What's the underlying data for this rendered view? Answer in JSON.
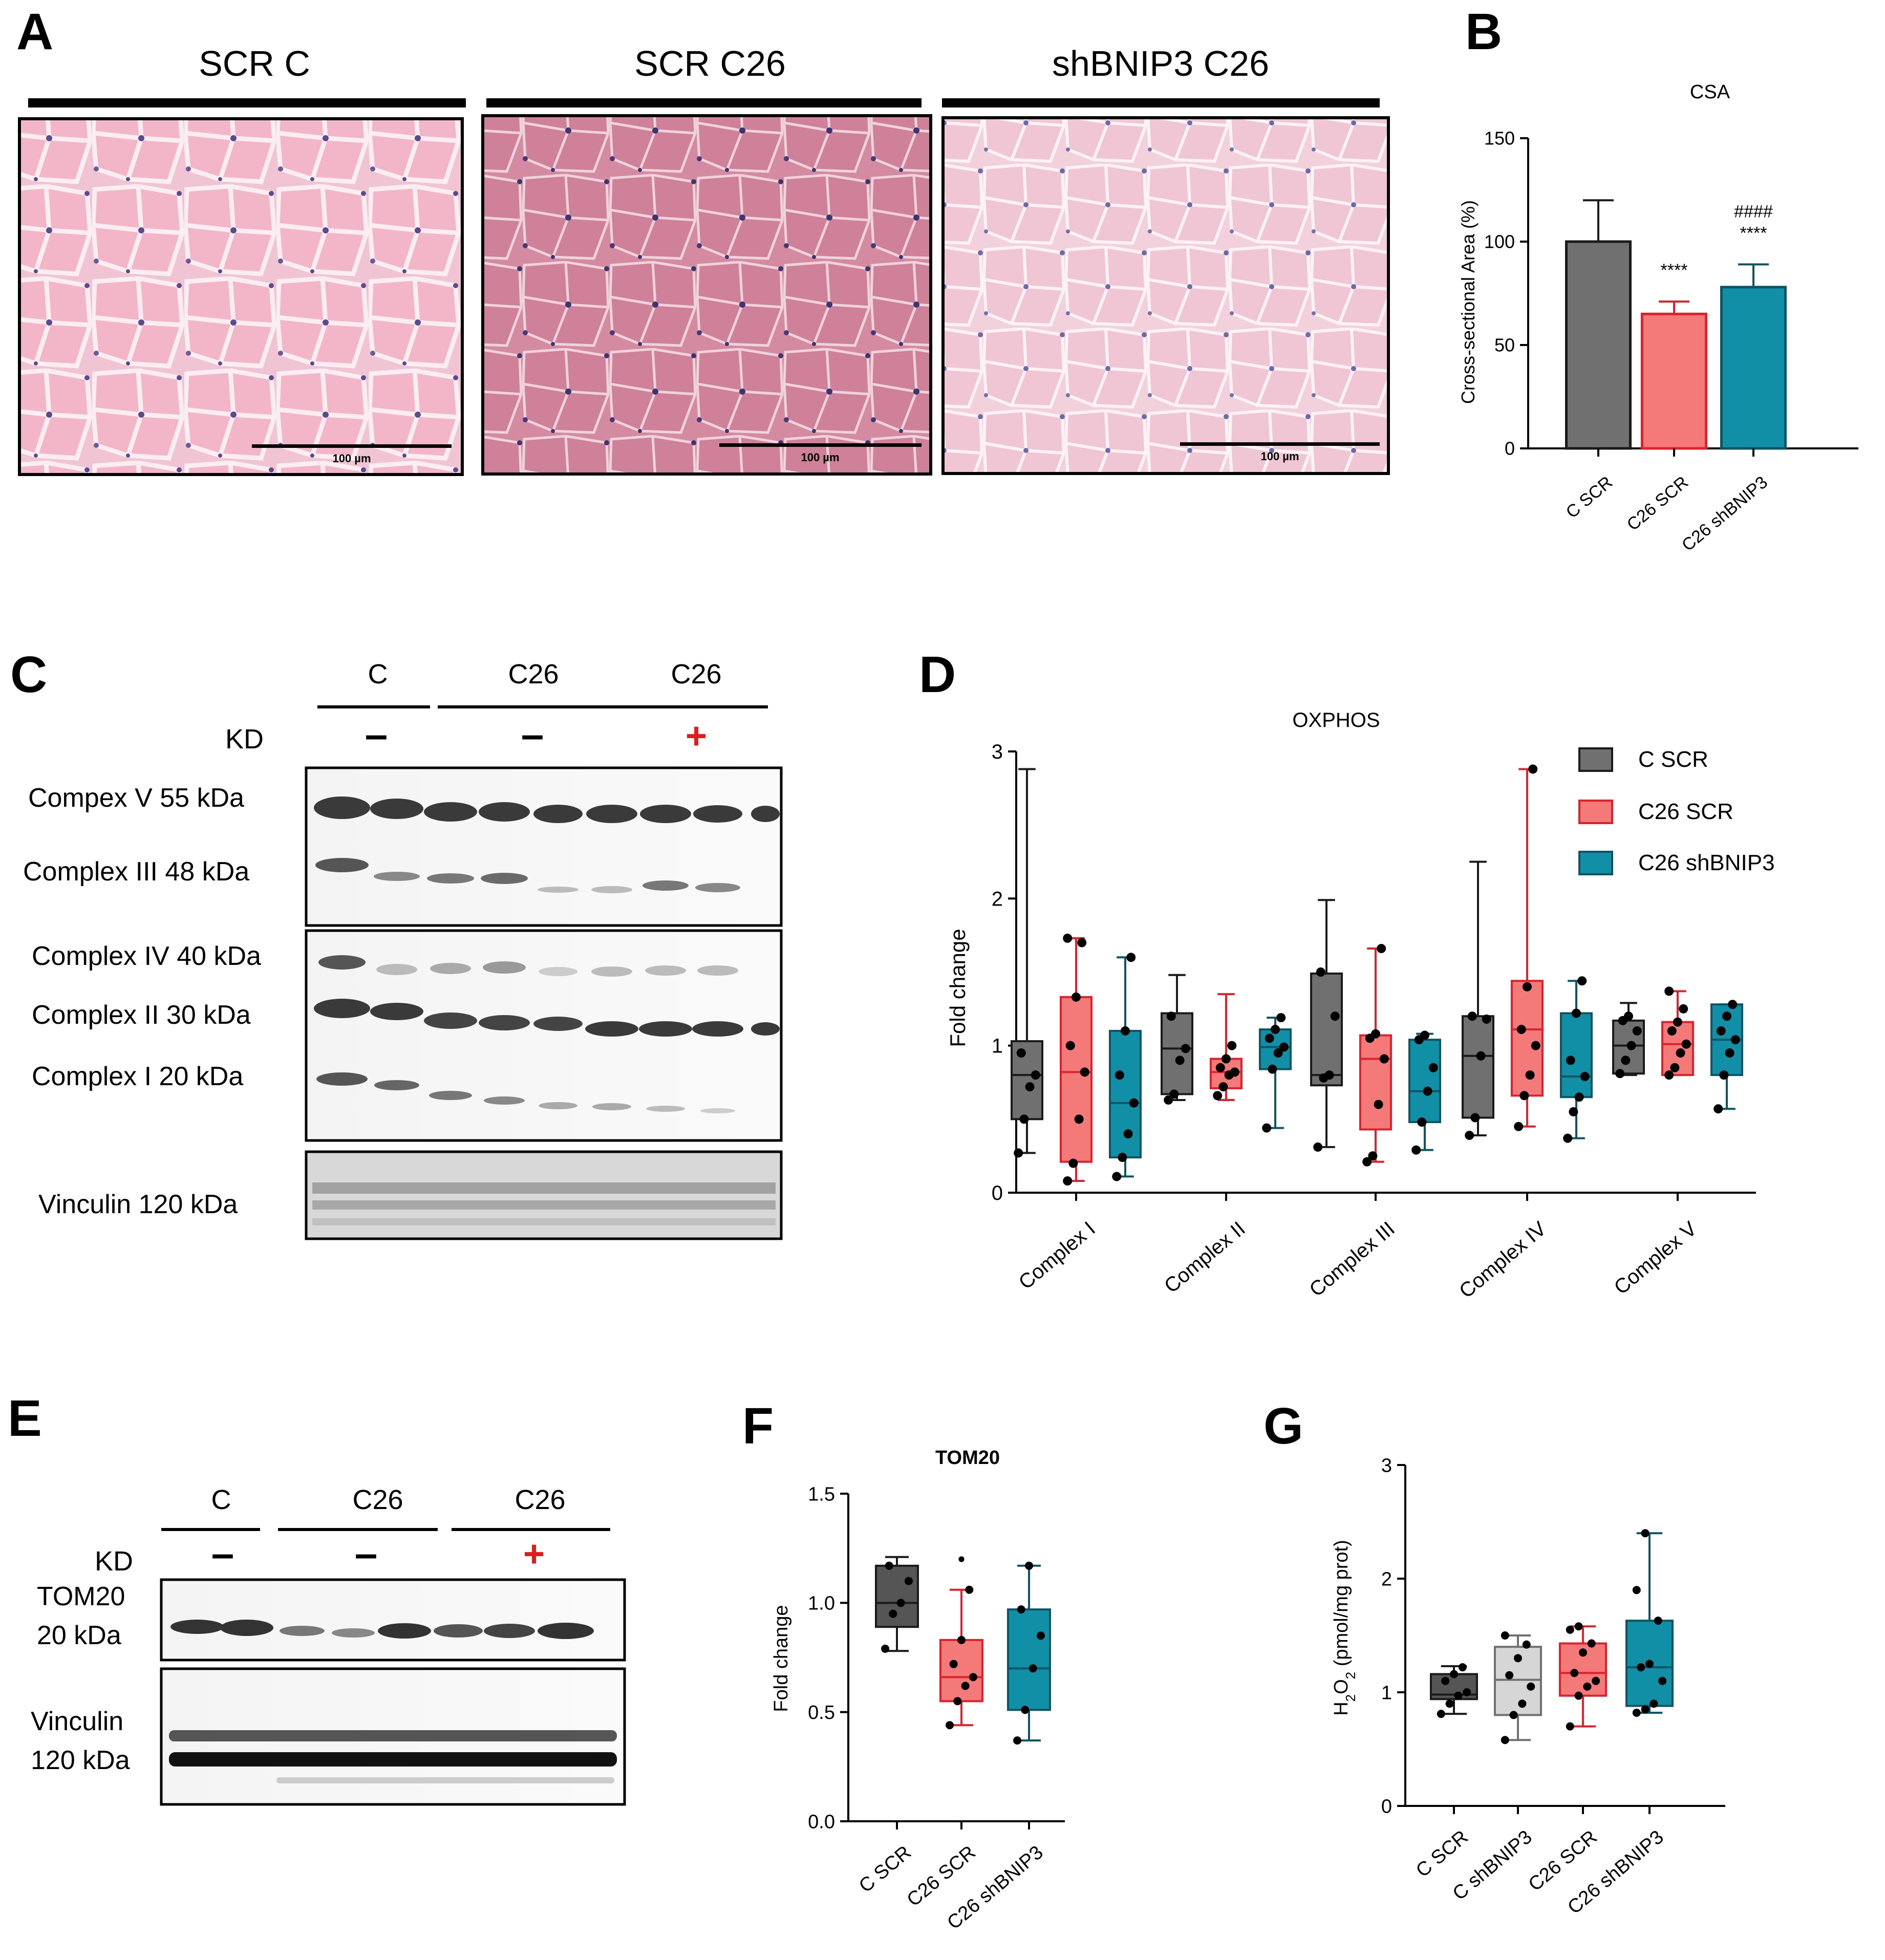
{
  "panels": {
    "A": {
      "letter": "A",
      "groups": [
        "SCR C",
        "SCR C26",
        "shBNIP3 C26"
      ],
      "scale_bar_label": "100 µm"
    },
    "B": {
      "letter": "B"
    },
    "C": {
      "letter": "C",
      "header_groups": [
        "C",
        "C26",
        "C26"
      ],
      "kd_label": "KD",
      "kd_marks": [
        "–",
        "–",
        "+"
      ],
      "band_labels": [
        "Compex  V 55 kDa",
        "Complex  III 48 kDa",
        "Complex  IV 40 kDa",
        "Complex  II 30 kDa",
        "Complex  I 20 kDa",
        "Vinculin 120 kDa"
      ]
    },
    "D": {
      "letter": "D"
    },
    "E": {
      "letter": "E",
      "header_groups": [
        "C",
        "C26",
        "C26"
      ],
      "kd_label": "KD",
      "kd_marks": [
        "–",
        "–",
        "+"
      ],
      "band_labels": [
        "TOM20",
        "20 kDa",
        "Vinculin",
        "120 kDa"
      ]
    },
    "F": {
      "letter": "F"
    },
    "G": {
      "letter": "G"
    }
  },
  "colors": {
    "c_scr": "#707070",
    "c_scr_dark": "#1a1a1a",
    "c26_scr": "#f47a7a",
    "c26_scr_dark": "#e0202a",
    "c26_shbnip3": "#108fa6",
    "c26_shbnip3_dark": "#0b5565",
    "c_shbnip3": "#d6d6d6",
    "c_shbnip3_dark": "#707070",
    "kd_plus": "#e21b1b"
  },
  "chart_data": [
    {
      "id": "B",
      "type": "bar",
      "title": "CSA",
      "ylabel": "Cross-sectional Area (%)",
      "ylim": [
        0,
        150
      ],
      "yticks": [
        0,
        50,
        100,
        150
      ],
      "categories": [
        "C SCR",
        "C26 SCR",
        "C26 shBNIP3"
      ],
      "values": [
        100,
        65,
        78
      ],
      "errors": [
        20,
        6,
        11
      ],
      "annotations": [
        {
          "category": "C26 SCR",
          "lines": [
            "****"
          ]
        },
        {
          "category": "C26 shBNIP3",
          "lines": [
            "####",
            "****"
          ]
        }
      ]
    },
    {
      "id": "D",
      "type": "box",
      "title": "OXPHOS",
      "ylabel": "Fold change",
      "ylim": [
        0,
        3
      ],
      "yticks": [
        0,
        1,
        2,
        3
      ],
      "categories": [
        "Complex I",
        "Complex II",
        "Complex III",
        "Complex IV",
        "Complex V"
      ],
      "legend": {
        "position": "top-right",
        "entries": [
          "C SCR",
          "C26 SCR",
          "C26 shBNIP3"
        ]
      },
      "series": [
        {
          "name": "C SCR",
          "boxes": [
            {
              "min": 0.27,
              "q1": 0.5,
              "median": 0.8,
              "q3": 1.03,
              "max": 2.88,
              "points": [
                0.27,
                0.5,
                0.72,
                0.8,
                0.95
              ]
            },
            {
              "min": 0.63,
              "q1": 0.67,
              "median": 0.98,
              "q3": 1.22,
              "max": 1.48,
              "points": [
                0.63,
                0.67,
                0.9,
                0.98,
                1.2
              ]
            },
            {
              "min": 0.31,
              "q1": 0.73,
              "median": 0.8,
              "q3": 1.49,
              "max": 1.99,
              "points": [
                0.31,
                0.78,
                0.8,
                1.2,
                1.5
              ]
            },
            {
              "min": 0.39,
              "q1": 0.51,
              "median": 0.93,
              "q3": 1.2,
              "max": 2.25,
              "points": [
                0.39,
                0.51,
                0.93,
                1.18,
                1.2
              ]
            },
            {
              "min": 0.8,
              "q1": 0.81,
              "median": 1.0,
              "q3": 1.17,
              "max": 1.29,
              "points": [
                0.81,
                0.9,
                1.0,
                1.1,
                1.17,
                1.2
              ]
            }
          ]
        },
        {
          "name": "C26 SCR",
          "boxes": [
            {
              "min": 0.08,
              "q1": 0.21,
              "median": 0.82,
              "q3": 1.33,
              "max": 1.73,
              "points": [
                0.08,
                0.2,
                0.5,
                0.82,
                1.0,
                1.33,
                1.7,
                1.73
              ]
            },
            {
              "min": 0.63,
              "q1": 0.71,
              "median": 0.82,
              "q3": 0.91,
              "max": 1.35,
              "points": [
                0.66,
                0.72,
                0.8,
                0.82,
                0.85,
                0.91,
                1.0
              ]
            },
            {
              "min": 0.21,
              "q1": 0.43,
              "median": 0.91,
              "q3": 1.07,
              "max": 1.66,
              "points": [
                0.21,
                0.25,
                0.6,
                0.91,
                1.05,
                1.08,
                1.66
              ]
            },
            {
              "min": 0.45,
              "q1": 0.66,
              "median": 1.11,
              "q3": 1.44,
              "max": 2.88,
              "points": [
                0.45,
                0.66,
                0.8,
                1.0,
                1.11,
                1.4,
                2.88
              ]
            },
            {
              "min": 0.8,
              "q1": 0.8,
              "median": 1.01,
              "q3": 1.16,
              "max": 1.37,
              "points": [
                0.8,
                0.85,
                0.95,
                1.01,
                1.1,
                1.16,
                1.25,
                1.37
              ]
            }
          ]
        },
        {
          "name": "C26 shBNIP3",
          "boxes": [
            {
              "min": 0.11,
              "q1": 0.24,
              "median": 0.61,
              "q3": 1.1,
              "max": 1.6,
              "points": [
                0.11,
                0.24,
                0.4,
                0.61,
                0.8,
                1.1,
                1.6
              ]
            },
            {
              "min": 0.44,
              "q1": 0.84,
              "median": 0.99,
              "q3": 1.11,
              "max": 1.19,
              "points": [
                0.44,
                0.84,
                0.95,
                0.99,
                1.05,
                1.11,
                1.19
              ]
            },
            {
              "min": 0.29,
              "q1": 0.48,
              "median": 0.69,
              "q3": 1.04,
              "max": 1.08,
              "points": [
                0.29,
                0.48,
                0.69,
                0.85,
                1.04,
                1.07
              ]
            },
            {
              "min": 0.37,
              "q1": 0.65,
              "median": 0.79,
              "q3": 1.22,
              "max": 1.44,
              "points": [
                0.37,
                0.55,
                0.65,
                0.79,
                0.9,
                1.22,
                1.44
              ]
            },
            {
              "min": 0.57,
              "q1": 0.8,
              "median": 1.04,
              "q3": 1.28,
              "max": 1.28,
              "points": [
                0.57,
                0.8,
                0.95,
                1.04,
                1.1,
                1.2,
                1.28
              ]
            }
          ]
        }
      ]
    },
    {
      "id": "F",
      "type": "box",
      "title": "TOM20",
      "ylabel": "Fold change",
      "ylim": [
        0,
        1.5
      ],
      "yticks": [
        0.0,
        0.5,
        1.0,
        1.5
      ],
      "categories": [
        "C SCR",
        "C26 SCR",
        "C26 shBNIP3"
      ],
      "series": [
        {
          "name": "",
          "boxes": [
            {
              "min": 0.78,
              "q1": 0.89,
              "median": 1.0,
              "q3": 1.17,
              "max": 1.21,
              "points": [
                0.79,
                0.95,
                1.0,
                1.1,
                1.17
              ]
            },
            {
              "min": 0.44,
              "q1": 0.55,
              "median": 0.66,
              "q3": 0.83,
              "max": 1.06,
              "points": [
                0.44,
                0.55,
                0.62,
                0.66,
                0.72,
                0.83,
                1.06
              ],
              "outliers": [
                1.2
              ]
            },
            {
              "min": 0.37,
              "q1": 0.51,
              "median": 0.7,
              "q3": 0.97,
              "max": 1.17,
              "points": [
                0.37,
                0.51,
                0.7,
                0.85,
                0.97,
                1.17
              ]
            }
          ]
        }
      ]
    },
    {
      "id": "G",
      "type": "box",
      "title": "",
      "ylabel": "H2O2 (pmol/mg prot)",
      "ylim": [
        0,
        3
      ],
      "yticks": [
        0,
        1,
        2,
        3
      ],
      "categories": [
        "C SCR",
        "C shBNIP3",
        "C26 SCR",
        "C26 shBNIP3"
      ],
      "series": [
        {
          "name": "",
          "boxes": [
            {
              "min": 0.81,
              "q1": 0.94,
              "median": 0.98,
              "q3": 1.16,
              "max": 1.23,
              "points": [
                0.81,
                0.9,
                0.97,
                1.0,
                1.1,
                1.16,
                1.22
              ]
            },
            {
              "min": 0.58,
              "q1": 0.8,
              "median": 1.11,
              "q3": 1.4,
              "max": 1.5,
              "points": [
                0.58,
                0.8,
                0.9,
                1.05,
                1.15,
                1.3,
                1.42,
                1.5
              ]
            },
            {
              "min": 0.7,
              "q1": 0.97,
              "median": 1.17,
              "q3": 1.43,
              "max": 1.58,
              "points": [
                0.7,
                0.97,
                1.05,
                1.1,
                1.17,
                1.35,
                1.43,
                1.55,
                1.58
              ]
            },
            {
              "min": 0.82,
              "q1": 0.88,
              "median": 1.22,
              "q3": 1.63,
              "max": 2.4,
              "points": [
                0.82,
                0.85,
                0.9,
                1.1,
                1.22,
                1.25,
                1.63,
                1.9,
                2.4
              ]
            }
          ]
        }
      ]
    }
  ]
}
